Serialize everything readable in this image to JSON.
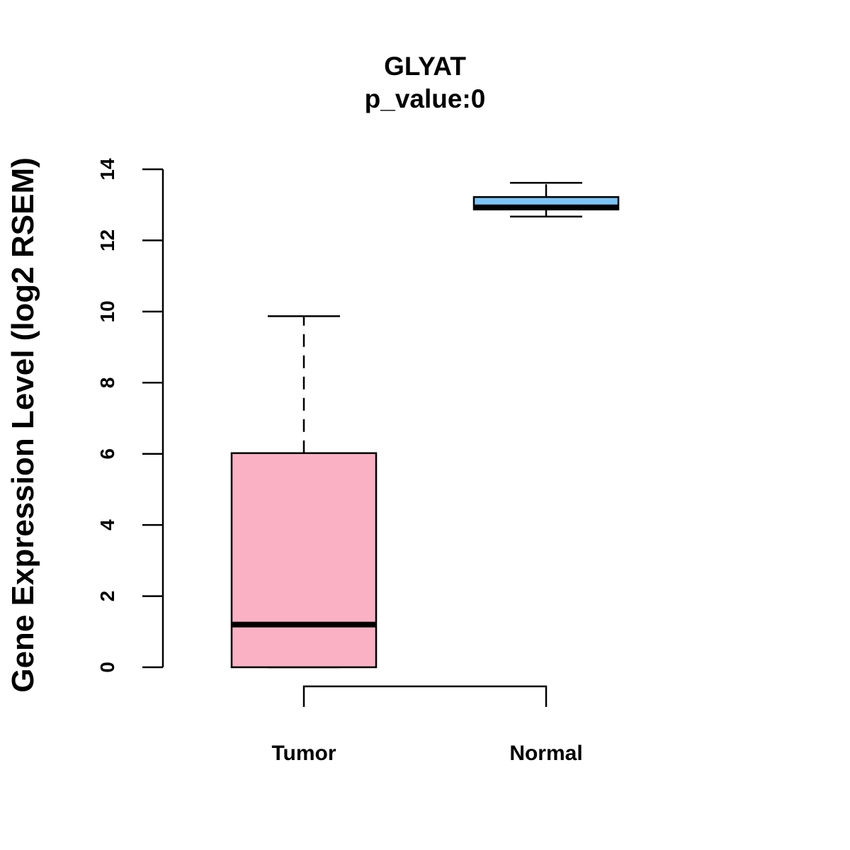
{
  "chart_data": {
    "type": "boxplot",
    "title": "GLYAT",
    "subtitle": "p_value:0",
    "xlabel": "",
    "ylabel": "Gene Expression Level (log2 RSEM)",
    "ylim": [
      0,
      14
    ],
    "yticks": [
      0,
      2,
      4,
      6,
      8,
      10,
      12,
      14
    ],
    "ytick_labels": [
      "0",
      "2",
      "4",
      "6",
      "8",
      "10",
      "12",
      "14"
    ],
    "grid": false,
    "groups": [
      {
        "name": "Tumor",
        "color": "#FBB1C4",
        "whisker_low": 0,
        "q1": 0,
        "median": 1.2,
        "q3": 6.02,
        "whisker_high": 9.87
      },
      {
        "name": "Normal",
        "color": "#7DC3F5",
        "whisker_low": 12.67,
        "q1": 12.87,
        "median": 12.93,
        "q3": 13.22,
        "whisker_high": 13.62
      }
    ],
    "comparison_bracket": [
      "Tumor",
      "Normal"
    ]
  }
}
